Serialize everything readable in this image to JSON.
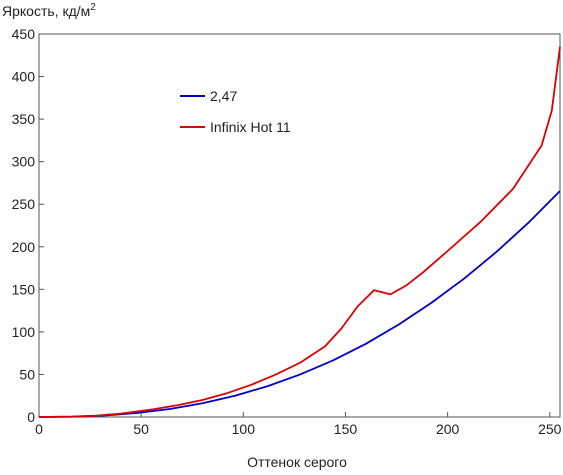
{
  "chart_data": {
    "type": "line",
    "ylabel": "Яркость, кд/м",
    "ylabel_sup": "2",
    "xlabel": "Оттенок серого",
    "xlim": [
      0,
      255
    ],
    "ylim": [
      0,
      450
    ],
    "xticks": [
      0,
      50,
      100,
      150,
      200,
      250
    ],
    "yticks": [
      0,
      50,
      100,
      150,
      200,
      250,
      300,
      350,
      400,
      450
    ],
    "grid": false,
    "legend_position": "upper-left",
    "series": [
      {
        "name": "2,47",
        "color": "#0000cc",
        "x": [
          0,
          16,
          32,
          48,
          64,
          80,
          96,
          112,
          128,
          144,
          160,
          176,
          192,
          208,
          224,
          240,
          255
        ],
        "y": [
          0,
          0.3,
          1.8,
          4.7,
          9.4,
          16.1,
          25.0,
          36.3,
          50.2,
          66.6,
          86.0,
          108.6,
          134.1,
          162.5,
          194.2,
          229.3,
          265.5
        ]
      },
      {
        "name": "Infinix Hot 11",
        "color": "#dd0000",
        "x": [
          0,
          16,
          28,
          40,
          56,
          68,
          80,
          92,
          104,
          116,
          128,
          140,
          148,
          156,
          164,
          172,
          180,
          188,
          200,
          216,
          232,
          246,
          251,
          255
        ],
        "y": [
          0,
          0.5,
          1.5,
          4,
          9,
          14,
          20,
          28,
          38,
          50,
          64,
          83,
          104,
          130,
          149,
          144,
          155,
          170,
          195,
          229,
          268,
          319,
          360,
          435
        ]
      }
    ]
  }
}
